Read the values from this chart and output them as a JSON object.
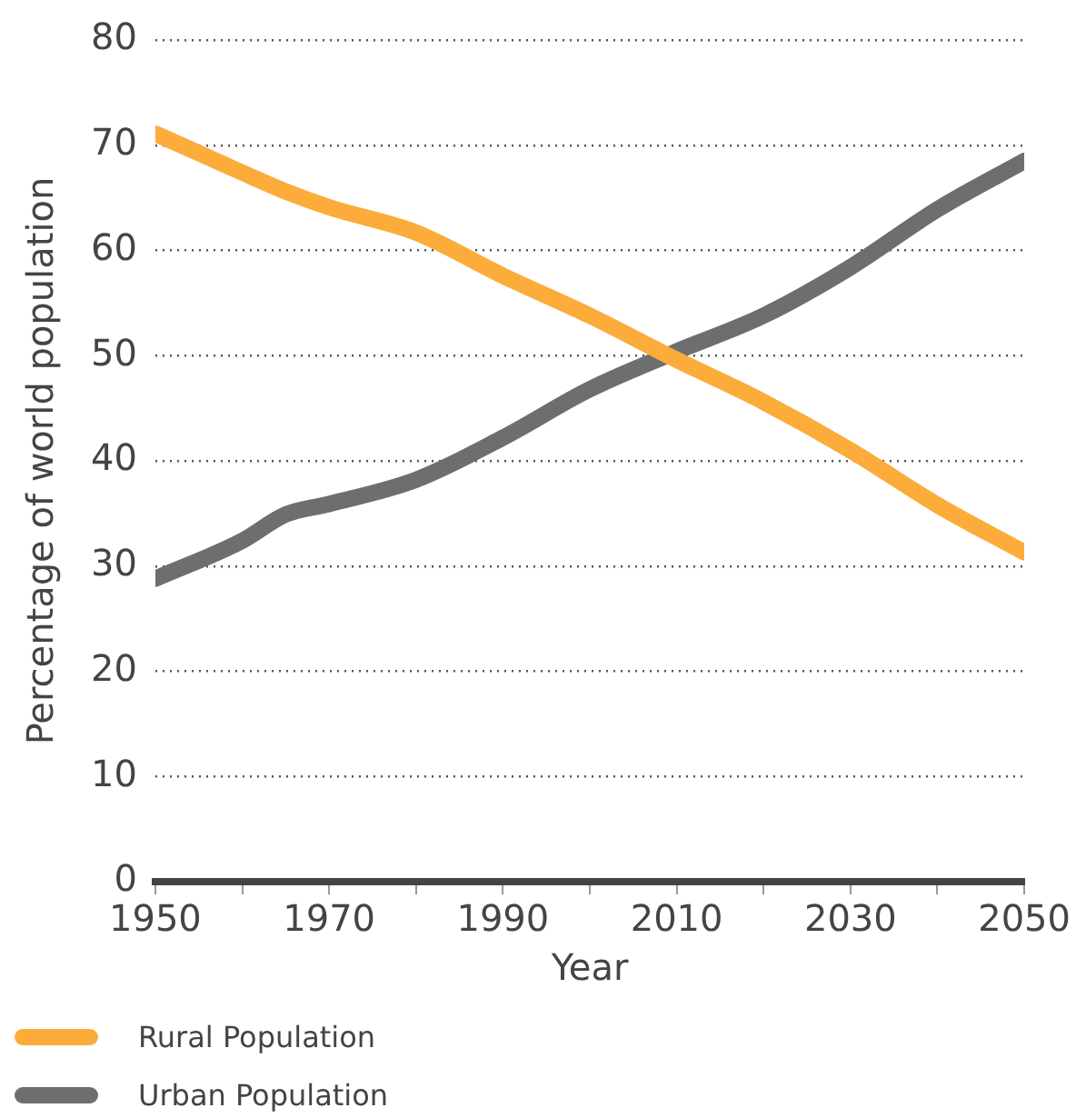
{
  "chart_data": {
    "type": "line",
    "xlabel": "Year",
    "ylabel": "Percentage of world population",
    "xlim": [
      1950,
      2050
    ],
    "xticks": [
      1950,
      {
        "value": 1960,
        "label": null
      },
      1970,
      {
        "value": 1980,
        "label": null
      },
      1990,
      {
        "value": 2000,
        "label": null
      },
      2010,
      {
        "value": 2020,
        "label": null
      },
      2030,
      {
        "value": 2040,
        "label": null
      },
      2050
    ],
    "ylim": [
      0,
      80
    ],
    "yticks": [
      0,
      10,
      20,
      30,
      40,
      50,
      60,
      70,
      80
    ],
    "grid": "y",
    "legend": "bottom",
    "marker": "none",
    "line_style": "solid",
    "x": [
      1950,
      1960,
      1965,
      1970,
      1980,
      1990,
      2000,
      2010,
      2020,
      2030,
      2040,
      2050
    ],
    "series": [
      {
        "name": "Rural Population",
        "color": "#fbac3b",
        "values": [
          71.1,
          67.4,
          65.6,
          64.1,
          61.7,
          57.6,
          53.8,
          49.6,
          45.6,
          41.0,
          35.8,
          31.3
        ]
      },
      {
        "name": "Urban Population",
        "color": "#6d6e70",
        "values": [
          28.8,
          32.4,
          34.9,
          35.9,
          38.2,
          42.2,
          46.8,
          50.4,
          53.8,
          58.4,
          63.9,
          68.5
        ]
      }
    ]
  }
}
